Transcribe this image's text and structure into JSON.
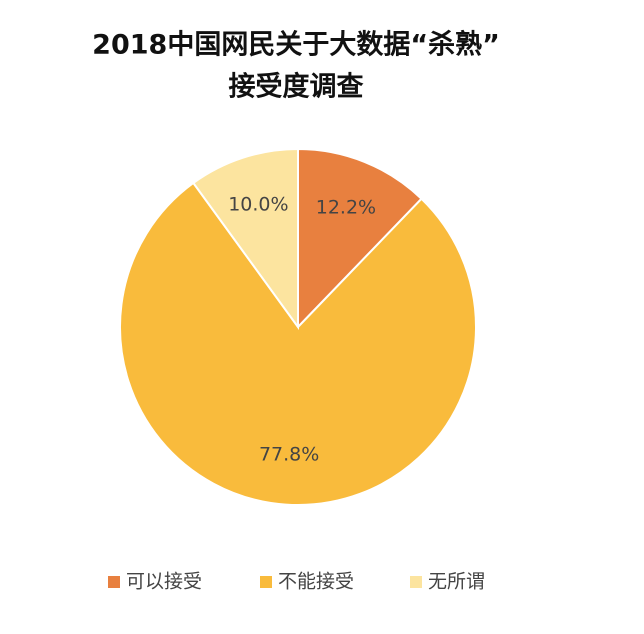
{
  "chart_data": {
    "type": "pie",
    "title": [
      "2018中国网民关于大数据“杀熟”",
      "接受度调查"
    ],
    "categories": [
      "可以接受",
      "不能接受",
      "无所谓"
    ],
    "values": [
      12.2,
      77.8,
      10.0
    ],
    "value_labels": [
      "12.2%",
      "77.8%",
      "10.0%"
    ],
    "colors": [
      "#e8803f",
      "#f9bb3c",
      "#fce49f"
    ],
    "legend": "bottom"
  }
}
